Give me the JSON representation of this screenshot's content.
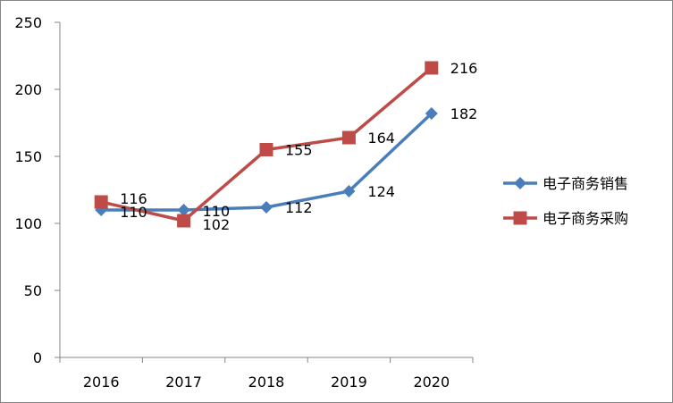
{
  "chart_data": {
    "type": "line",
    "categories": [
      "2016",
      "2017",
      "2018",
      "2019",
      "2020"
    ],
    "series": [
      {
        "name": "电子商务销售",
        "values": [
          110,
          110,
          112,
          124,
          182
        ],
        "color": "#4a7ebb",
        "marker": "diamond"
      },
      {
        "name": "电子商务采购",
        "values": [
          116,
          102,
          155,
          164,
          216
        ],
        "color": "#be4b48",
        "marker": "square"
      }
    ],
    "ylim": [
      0,
      250
    ],
    "yticks": [
      0,
      50,
      100,
      150,
      200,
      250
    ],
    "grid": false,
    "legend_position": "right",
    "data_labels": true,
    "title": "",
    "xlabel": "",
    "ylabel": ""
  }
}
